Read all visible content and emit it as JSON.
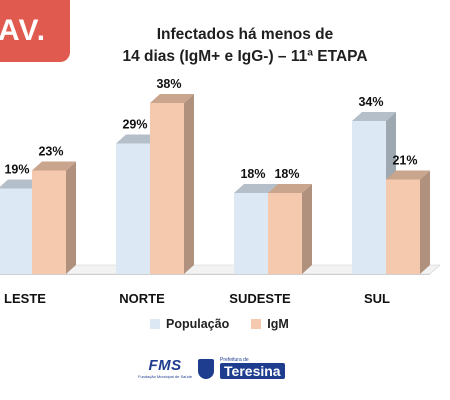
{
  "corner_tag": "AV.",
  "chart_data": {
    "type": "bar",
    "title_line1": "Infectados há menos de",
    "title_line2": "14 dias (IgM+ e IgG-) – 11ª ETAPA",
    "categories": [
      "LESTE",
      "NORTE",
      "SUDESTE",
      "SUL"
    ],
    "series": [
      {
        "name": "População",
        "values": [
          19,
          29,
          18,
          34
        ],
        "labels": [
          "19%",
          "29%",
          "18%",
          "34%"
        ],
        "color": "#dce9f5"
      },
      {
        "name": "IgM",
        "values": [
          23,
          38,
          18,
          21
        ],
        "labels": [
          "23%",
          "38%",
          "18%",
          "21%"
        ],
        "color": "#f5c9ad"
      }
    ],
    "ylim": [
      0,
      38
    ],
    "grid": false,
    "legend_position": "bottom"
  },
  "logos": {
    "fms": "FMS",
    "fms_sub": "Fundação Municipal de Saúde",
    "pref_small": "Prefeitura de",
    "pref_name": "Teresina"
  },
  "colors": {
    "accent": "#e05a4f",
    "brand_blue": "#1e3d8f"
  }
}
